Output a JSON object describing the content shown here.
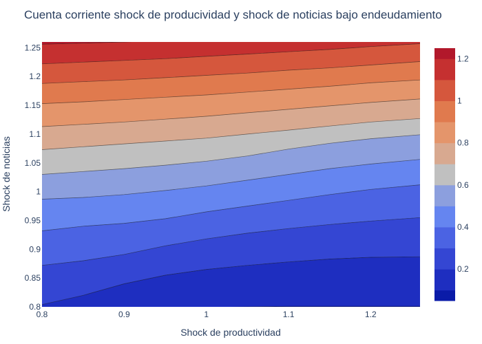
{
  "chart_data": {
    "type": "contour",
    "title": "Cuenta corriente shock de producividad y shock de noticias bajo endeudamiento",
    "xlabel": "Shock de productividad",
    "ylabel": "Shock de noticias",
    "xlim": [
      0.8,
      1.26
    ],
    "ylim": [
      0.8,
      1.26
    ],
    "x_ticks": [
      "0.8",
      "0.9",
      "1",
      "1.1",
      "1.2"
    ],
    "y_ticks": [
      "0.8",
      "0.85",
      "0.9",
      "0.95",
      "1",
      "1.05",
      "1.1",
      "1.15",
      "1.2",
      "1.25"
    ],
    "colorbar_ticks": [
      "0.2",
      "0.4",
      "0.6",
      "0.8",
      "1",
      "1.2"
    ],
    "colorbar_range": [
      0.05,
      1.25
    ],
    "contour_levels": [
      0.1,
      0.2,
      0.3,
      0.4,
      0.5,
      0.6,
      0.7,
      0.8,
      0.9,
      1.0,
      1.1,
      1.2
    ],
    "colorscale": [
      "#0a1ba8",
      "#1e2ec0",
      "#3446d3",
      "#4b63e3",
      "#6585f0",
      "#8c9fde",
      "#c0c0c0",
      "#d8a990",
      "#e4956b",
      "#e07a4e",
      "#d5573d",
      "#c53030",
      "#b2182b"
    ],
    "contour_lines": [
      {
        "level": 0.1,
        "points": [
          [
            0.8,
            0.799
          ],
          [
            0.9,
            0.799
          ],
          [
            1.0,
            0.799
          ],
          [
            1.1,
            0.801
          ],
          [
            1.2,
            0.801
          ],
          [
            1.26,
            0.801
          ]
        ]
      },
      {
        "level": 0.2,
        "points": [
          [
            0.8,
            0.804
          ],
          [
            0.85,
            0.82
          ],
          [
            0.9,
            0.84
          ],
          [
            0.95,
            0.855
          ],
          [
            1.0,
            0.865
          ],
          [
            1.05,
            0.872
          ],
          [
            1.1,
            0.878
          ],
          [
            1.15,
            0.883
          ],
          [
            1.2,
            0.886
          ],
          [
            1.26,
            0.887
          ]
        ]
      },
      {
        "level": 0.3,
        "points": [
          [
            0.8,
            0.872
          ],
          [
            0.85,
            0.88
          ],
          [
            0.9,
            0.891
          ],
          [
            0.95,
            0.906
          ],
          [
            1.0,
            0.918
          ],
          [
            1.05,
            0.928
          ],
          [
            1.1,
            0.936
          ],
          [
            1.15,
            0.943
          ],
          [
            1.2,
            0.949
          ],
          [
            1.26,
            0.955
          ]
        ]
      },
      {
        "level": 0.4,
        "points": [
          [
            0.8,
            0.932
          ],
          [
            0.85,
            0.94
          ],
          [
            0.9,
            0.945
          ],
          [
            0.95,
            0.953
          ],
          [
            1.0,
            0.965
          ],
          [
            1.05,
            0.975
          ],
          [
            1.1,
            0.985
          ],
          [
            1.15,
            0.995
          ],
          [
            1.2,
            1.004
          ],
          [
            1.26,
            1.012
          ]
        ]
      },
      {
        "level": 0.5,
        "points": [
          [
            0.8,
            0.987
          ],
          [
            0.85,
            0.99
          ],
          [
            0.9,
            0.995
          ],
          [
            0.95,
            1.002
          ],
          [
            1.0,
            1.01
          ],
          [
            1.05,
            1.02
          ],
          [
            1.1,
            1.03
          ],
          [
            1.15,
            1.04
          ],
          [
            1.2,
            1.048
          ],
          [
            1.26,
            1.056
          ]
        ]
      },
      {
        "level": 0.6,
        "points": [
          [
            0.8,
            1.03
          ],
          [
            0.85,
            1.035
          ],
          [
            0.9,
            1.04
          ],
          [
            0.95,
            1.046
          ],
          [
            1.0,
            1.053
          ],
          [
            1.05,
            1.062
          ],
          [
            1.1,
            1.074
          ],
          [
            1.15,
            1.084
          ],
          [
            1.2,
            1.092
          ],
          [
            1.26,
            1.099
          ]
        ]
      },
      {
        "level": 0.7,
        "points": [
          [
            0.8,
            1.073
          ],
          [
            0.85,
            1.078
          ],
          [
            0.9,
            1.083
          ],
          [
            0.95,
            1.088
          ],
          [
            1.0,
            1.093
          ],
          [
            1.05,
            1.1
          ],
          [
            1.1,
            1.107
          ],
          [
            1.15,
            1.114
          ],
          [
            1.2,
            1.121
          ],
          [
            1.26,
            1.127
          ]
        ]
      },
      {
        "level": 0.8,
        "points": [
          [
            0.8,
            1.113
          ],
          [
            0.85,
            1.117
          ],
          [
            0.9,
            1.121
          ],
          [
            0.95,
            1.126
          ],
          [
            1.0,
            1.131
          ],
          [
            1.05,
            1.137
          ],
          [
            1.1,
            1.143
          ],
          [
            1.15,
            1.149
          ],
          [
            1.2,
            1.155
          ],
          [
            1.26,
            1.161
          ]
        ]
      },
      {
        "level": 0.9,
        "points": [
          [
            0.8,
            1.153
          ],
          [
            0.85,
            1.156
          ],
          [
            0.9,
            1.16
          ],
          [
            0.95,
            1.164
          ],
          [
            1.0,
            1.168
          ],
          [
            1.05,
            1.173
          ],
          [
            1.1,
            1.178
          ],
          [
            1.15,
            1.183
          ],
          [
            1.2,
            1.189
          ],
          [
            1.26,
            1.194
          ]
        ]
      },
      {
        "level": 1.0,
        "points": [
          [
            0.8,
            1.188
          ],
          [
            0.85,
            1.191
          ],
          [
            0.9,
            1.194
          ],
          [
            0.95,
            1.198
          ],
          [
            1.0,
            1.202
          ],
          [
            1.05,
            1.206
          ],
          [
            1.1,
            1.211
          ],
          [
            1.15,
            1.215
          ],
          [
            1.2,
            1.22
          ],
          [
            1.26,
            1.226
          ]
        ]
      },
      {
        "level": 1.1,
        "points": [
          [
            0.8,
            1.222
          ],
          [
            0.85,
            1.225
          ],
          [
            0.9,
            1.228
          ],
          [
            0.95,
            1.231
          ],
          [
            1.0,
            1.235
          ],
          [
            1.05,
            1.239
          ],
          [
            1.1,
            1.243
          ],
          [
            1.15,
            1.247
          ],
          [
            1.2,
            1.252
          ],
          [
            1.26,
            1.257
          ]
        ]
      },
      {
        "level": 1.2,
        "points": [
          [
            0.8,
            1.256
          ],
          [
            0.85,
            1.258
          ],
          [
            0.9,
            1.26
          ],
          [
            0.95,
            1.262
          ],
          [
            1.0,
            1.264
          ],
          [
            1.05,
            1.266
          ],
          [
            1.1,
            1.268
          ],
          [
            1.15,
            1.27
          ],
          [
            1.2,
            1.272
          ],
          [
            1.26,
            1.274
          ]
        ]
      }
    ]
  }
}
